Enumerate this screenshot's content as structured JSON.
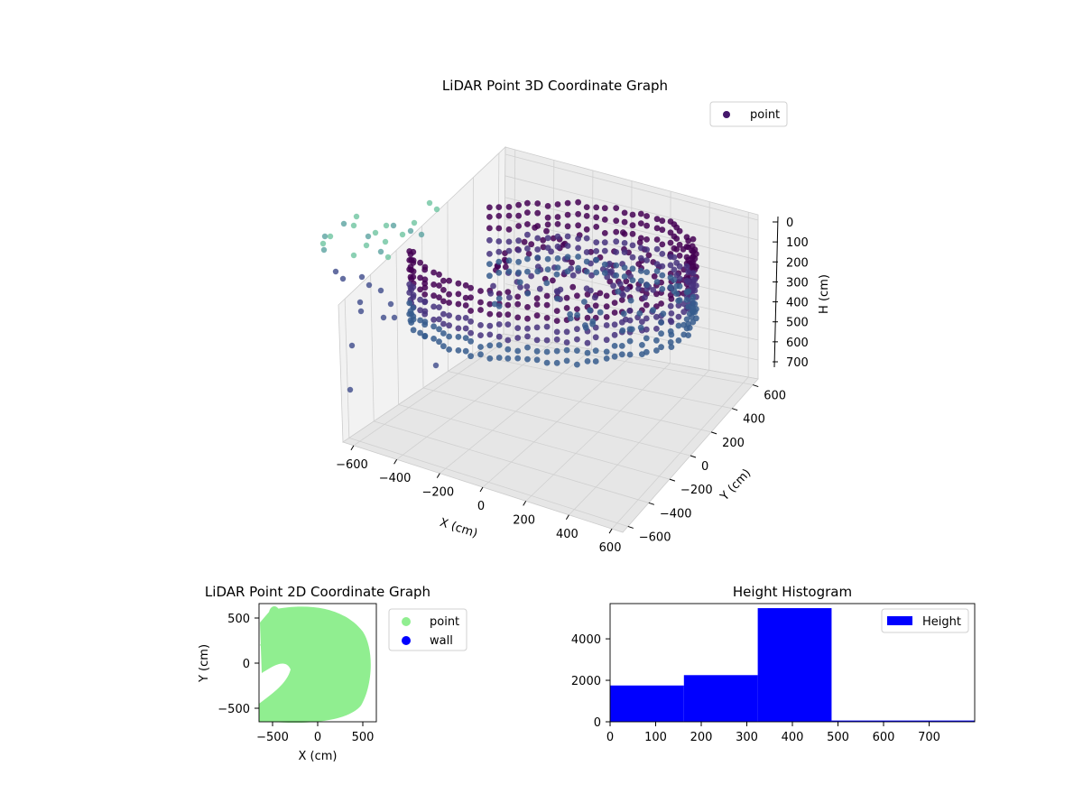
{
  "figure": {
    "chart3d": {
      "title": "LiDAR Point 3D Coordinate Graph",
      "legend_label": "point",
      "legend_color": "#45186b",
      "x_label": "X (cm)",
      "y_label": "Y (cm)",
      "z_label": "H (cm)",
      "x_ticks": [
        "−600",
        "−400",
        "−200",
        "0",
        "200",
        "400",
        "600"
      ],
      "y_ticks": [
        "−600",
        "−400",
        "−200",
        "0",
        "200",
        "400",
        "600"
      ],
      "z_ticks": [
        "0",
        "100",
        "200",
        "300",
        "400",
        "500",
        "600",
        "700"
      ]
    },
    "chart2d": {
      "title": "LiDAR Point 2D Coordinate Graph",
      "x_label": "X (cm)",
      "y_label": "Y (cm)",
      "x_ticks": [
        "−500",
        "0",
        "500"
      ],
      "y_ticks": [
        "500",
        "0",
        "−500"
      ],
      "legend": [
        {
          "label": "point",
          "color": "#90ee90"
        },
        {
          "label": "wall",
          "color": "#0000ff"
        }
      ]
    },
    "histogram": {
      "title": "Height Histogram",
      "legend_label": "Height",
      "bar_color": "#0000ff",
      "x_ticks": [
        "0",
        "100",
        "200",
        "300",
        "400",
        "500",
        "600",
        "700"
      ],
      "y_ticks": [
        "0",
        "2000",
        "4000"
      ]
    }
  },
  "chart_data": [
    {
      "type": "scatter",
      "title": "LiDAR Point 3D Coordinate Graph",
      "xlabel": "X (cm)",
      "ylabel": "Y (cm)",
      "zlabel": "H (cm)",
      "xlim": [
        -650,
        650
      ],
      "ylim": [
        -650,
        650
      ],
      "zlim": [
        0,
        780
      ],
      "z_inverted": true,
      "colormap": "viridis",
      "series": [
        {
          "name": "point"
        }
      ],
      "legend_position": "upper-right",
      "description_points": "dense cylindrical ring of points radius ~500 cm at heights ~180-480 cm, sparse outliers near x=-600"
    },
    {
      "type": "scatter",
      "title": "LiDAR Point 2D Coordinate Graph",
      "xlabel": "X (cm)",
      "ylabel": "Y (cm)",
      "xlim": [
        -650,
        650
      ],
      "ylim": [
        -650,
        650
      ],
      "series": [
        {
          "name": "point",
          "color": "#90ee90"
        },
        {
          "name": "wall",
          "color": "#0000ff"
        }
      ],
      "legend_position": "outside-right"
    },
    {
      "type": "bar",
      "title": "Height Histogram",
      "bins": [
        [
          0,
          162
        ],
        [
          162,
          324
        ],
        [
          324,
          486
        ],
        [
          486,
          800
        ]
      ],
      "values": [
        1750,
        2250,
        5480,
        60
      ],
      "xlim": [
        0,
        800
      ],
      "ylim": [
        0,
        5700
      ],
      "series": [
        {
          "name": "Height",
          "color": "#0000ff"
        }
      ],
      "legend_position": "upper-right"
    }
  ]
}
